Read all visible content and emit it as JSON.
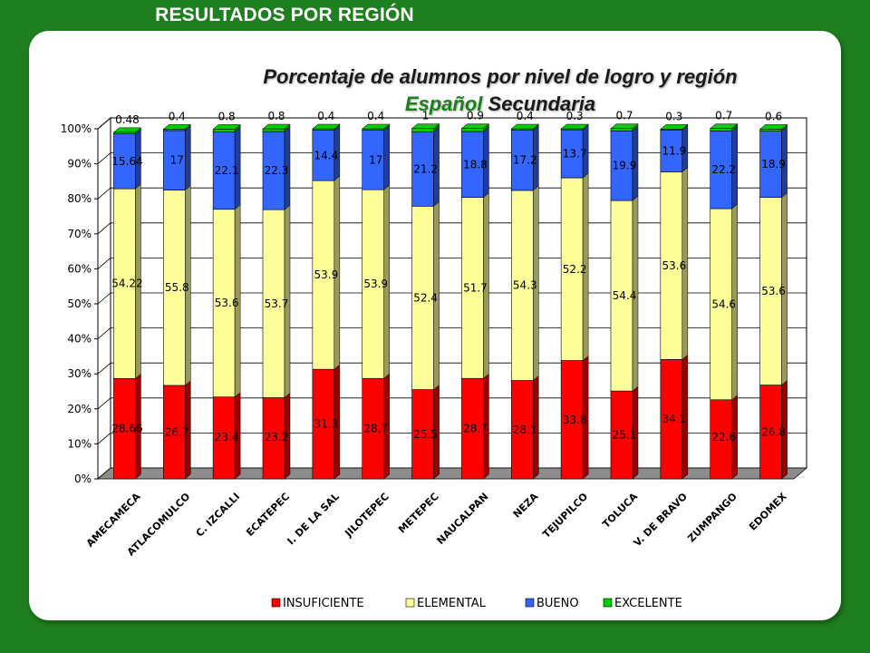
{
  "header": {
    "title": "RESULTADOS POR REGIÓN"
  },
  "chart_title": {
    "line1": "Porcentaje de alumnos por nivel de logro y región",
    "subject": "Español",
    "level": "Secundaria"
  },
  "colors": {
    "background": "#1e7f1e",
    "insuficiente": "#ff0000",
    "elemental": "#ffff99",
    "bueno": "#3366ff",
    "excelente": "#00cc00"
  },
  "chart_data": {
    "type": "bar",
    "stacked": true,
    "percent": true,
    "title": "Porcentaje de alumnos por nivel de logro y región",
    "subtitle": "Español Secundaria",
    "xlabel": "",
    "ylabel": "",
    "ylim": [
      0,
      100
    ],
    "yticks": [
      "0%",
      "10%",
      "20%",
      "30%",
      "40%",
      "50%",
      "60%",
      "70%",
      "80%",
      "90%",
      "100%"
    ],
    "legend_position": "bottom",
    "grid": true,
    "categories": [
      "AMECAMECA",
      "ATLACOMULCO",
      "C. IZCALLI",
      "ECATEPEC",
      "I. DE LA SAL",
      "JILOTEPEC",
      "METEPEC",
      "NAUCALPAN",
      "NEZA",
      "TEJUPILCO",
      "TOLUCA",
      "V. DE BRAVO",
      "ZUMPANGO",
      "EDOMEX"
    ],
    "series": [
      {
        "name": "INSUFICIENTE",
        "color": "#ff0000",
        "values": [
          28.66,
          26.7,
          23.4,
          23.2,
          31.3,
          28.7,
          25.5,
          28.7,
          28.1,
          33.8,
          25.1,
          34.1,
          22.6,
          26.8
        ],
        "labels": [
          "28.66",
          "26.7",
          "23.4",
          "23.2",
          "31.3",
          "28.7",
          "25.5",
          "28.7",
          "28.1",
          "33.8",
          "25.1",
          "34.1",
          "22.6",
          "26.8"
        ]
      },
      {
        "name": "ELEMENTAL",
        "color": "#ffff99",
        "values": [
          54.22,
          55.8,
          53.6,
          53.7,
          53.9,
          53.9,
          52.4,
          51.7,
          54.3,
          52.2,
          54.4,
          53.6,
          54.6,
          53.6
        ],
        "labels": [
          "54.22",
          "55.8",
          "53.6",
          "53.7",
          "53.9",
          "53.9",
          "52.4",
          "51.7",
          "54.3",
          "52.2",
          "54.4",
          "53.6",
          "54.6",
          "53.6"
        ]
      },
      {
        "name": "BUENO",
        "color": "#3366ff",
        "values": [
          15.64,
          17,
          22.1,
          22.3,
          14.4,
          17,
          21.2,
          18.8,
          17.2,
          13.7,
          19.9,
          11.9,
          22.2,
          18.9
        ],
        "labels": [
          "15.64",
          "17",
          "22.1",
          "22.3",
          "14.4",
          "17",
          "21.2",
          "18.8",
          "17.2",
          "13.7",
          "19.9",
          "11.9",
          "22.2",
          "18.9"
        ]
      },
      {
        "name": "EXCELENTE",
        "color": "#00cc00",
        "values": [
          0.48,
          0.4,
          0.8,
          0.8,
          0.4,
          0.4,
          1,
          0.9,
          0.4,
          0.3,
          0.7,
          0.3,
          0.7,
          0.6
        ],
        "labels": [
          "0.48",
          "0.4",
          "0.8",
          "0.8",
          "0.4",
          "0.4",
          "1",
          "0.9",
          "0.4",
          "0.3",
          "0.7",
          "0.3",
          "0.7",
          "0.6"
        ]
      }
    ]
  }
}
